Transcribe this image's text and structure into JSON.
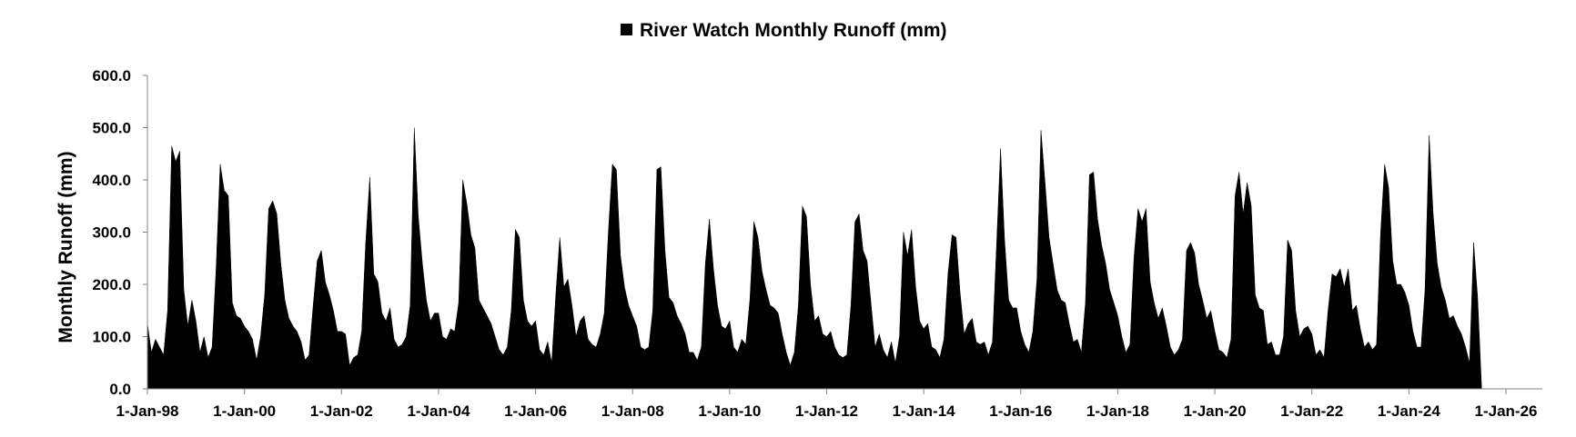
{
  "chart_data": {
    "type": "area",
    "title": "",
    "xlabel": "",
    "ylabel": "Monthly Runoff (mm)",
    "ylim": [
      0,
      600
    ],
    "yticks": [
      "0.0",
      "100.0",
      "200.0",
      "300.0",
      "400.0",
      "500.0",
      "600.0"
    ],
    "xticks": [
      "1-Jan-98",
      "1-Jan-00",
      "1-Jan-02",
      "1-Jan-04",
      "1-Jan-06",
      "1-Jan-08",
      "1-Jan-10",
      "1-Jan-12",
      "1-Jan-14",
      "1-Jan-16",
      "1-Jan-18",
      "1-Jan-20",
      "1-Jan-22",
      "1-Jan-24",
      "1-Jan-26"
    ],
    "xlim": [
      "1998-01",
      "2026-10"
    ],
    "start_month": "1998-01",
    "grid": false,
    "legend": "top-center",
    "series": [
      {
        "name": "River Watch Monthly Runoff (mm)",
        "color": "#000000",
        "values": [
          125,
          70,
          95,
          80,
          65,
          150,
          465,
          435,
          455,
          190,
          120,
          170,
          130,
          70,
          100,
          60,
          80,
          230,
          430,
          380,
          370,
          165,
          140,
          135,
          120,
          110,
          95,
          55,
          100,
          180,
          345,
          360,
          335,
          240,
          170,
          135,
          120,
          110,
          90,
          55,
          65,
          160,
          245,
          265,
          205,
          180,
          150,
          110,
          110,
          105,
          45,
          60,
          65,
          110,
          280,
          405,
          220,
          205,
          145,
          130,
          155,
          95,
          80,
          85,
          100,
          160,
          500,
          330,
          240,
          170,
          130,
          145,
          145,
          100,
          95,
          115,
          110,
          165,
          400,
          355,
          295,
          270,
          170,
          155,
          140,
          125,
          100,
          75,
          65,
          80,
          150,
          305,
          290,
          170,
          130,
          120,
          130,
          75,
          65,
          90,
          50,
          180,
          290,
          195,
          210,
          160,
          100,
          130,
          140,
          95,
          85,
          80,
          105,
          145,
          300,
          430,
          420,
          255,
          195,
          160,
          140,
          120,
          80,
          75,
          80,
          150,
          420,
          425,
          265,
          175,
          165,
          140,
          125,
          105,
          70,
          70,
          55,
          80,
          240,
          325,
          230,
          160,
          120,
          115,
          130,
          80,
          70,
          95,
          85,
          170,
          320,
          290,
          225,
          190,
          160,
          155,
          145,
          105,
          70,
          45,
          70,
          160,
          350,
          330,
          200,
          130,
          140,
          105,
          100,
          110,
          80,
          65,
          60,
          65,
          160,
          320,
          335,
          265,
          245,
          160,
          80,
          105,
          75,
          60,
          90,
          50,
          100,
          300,
          255,
          305,
          195,
          130,
          115,
          125,
          80,
          75,
          60,
          95,
          220,
          295,
          290,
          185,
          105,
          125,
          135,
          90,
          85,
          90,
          65,
          90,
          270,
          460,
          285,
          170,
          155,
          155,
          110,
          85,
          70,
          110,
          210,
          495,
          395,
          290,
          240,
          190,
          170,
          165,
          125,
          90,
          95,
          70,
          165,
          410,
          415,
          325,
          275,
          240,
          190,
          165,
          140,
          100,
          70,
          85,
          250,
          345,
          320,
          345,
          205,
          165,
          135,
          155,
          120,
          80,
          65,
          75,
          95,
          265,
          280,
          260,
          200,
          170,
          135,
          150,
          110,
          75,
          70,
          60,
          95,
          370,
          415,
          335,
          395,
          350,
          180,
          155,
          150,
          85,
          90,
          65,
          65,
          100,
          285,
          265,
          150,
          100,
          115,
          120,
          105,
          65,
          75,
          60,
          150,
          220,
          215,
          230,
          195,
          230,
          150,
          160,
          115,
          80,
          90,
          75,
          85,
          300,
          430,
          385,
          245,
          200,
          200,
          185,
          160,
          110,
          80,
          80,
          190,
          485,
          335,
          240,
          195,
          170,
          135,
          140,
          120,
          105,
          80,
          50,
          280,
          175,
          0
        ]
      }
    ]
  },
  "legend": {
    "label": "River Watch Monthly Runoff (mm)"
  }
}
